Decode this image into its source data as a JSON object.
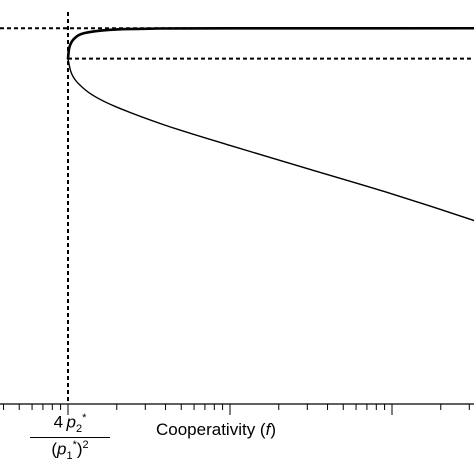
{
  "chart_data": {
    "type": "line",
    "x_scale": "log",
    "xlabel_text": "Cooperativity (",
    "xlabel_var": "f",
    "xlabel_close": ")",
    "threshold_label": {
      "num_coef": "4",
      "num_var": "p",
      "num_sub": "2",
      "num_sup": "*",
      "den_open": "(",
      "den_var": "p",
      "den_sub": "1",
      "den_sup": "*",
      "den_close": ")",
      "den_pow": "2"
    },
    "x_decades": 4,
    "y_range": [
      0,
      1
    ],
    "upper_asymptote": 0.93,
    "lower_asymptote": 0.855,
    "branch_point": [
      0,
      0.855
    ],
    "series": [
      {
        "style": "thick",
        "points": [
          [
            0,
            0.855
          ],
          [
            0.01,
            0.885
          ],
          [
            0.04,
            0.905
          ],
          [
            0.1,
            0.918
          ],
          [
            0.25,
            0.926
          ],
          [
            0.5,
            0.929
          ],
          [
            1,
            0.93
          ],
          [
            4,
            0.93
          ]
        ]
      },
      {
        "style": "thin",
        "points": [
          [
            0,
            0.855
          ],
          [
            0.02,
            0.82
          ],
          [
            0.06,
            0.795
          ],
          [
            0.15,
            0.765
          ],
          [
            0.3,
            0.735
          ],
          [
            0.6,
            0.69
          ],
          [
            1,
            0.64
          ],
          [
            1.5,
            0.58
          ],
          [
            2,
            0.52
          ],
          [
            2.5,
            0.455
          ],
          [
            3,
            0.385
          ],
          [
            3.5,
            0.3
          ],
          [
            3.85,
            0.24
          ]
        ]
      }
    ]
  }
}
